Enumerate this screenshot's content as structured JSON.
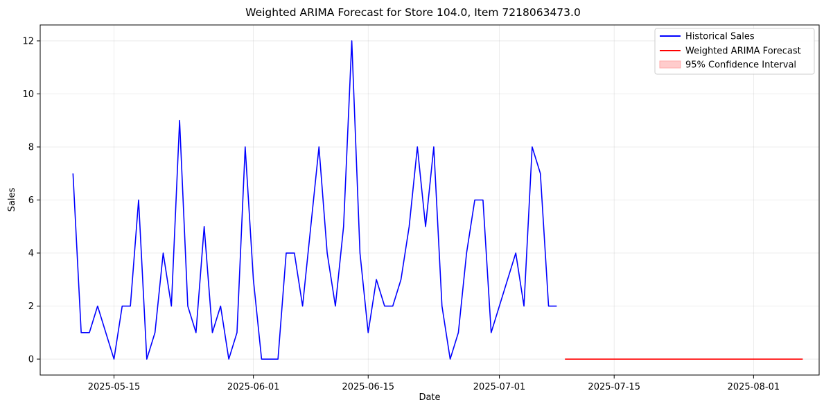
{
  "chart_data": {
    "type": "line",
    "title": "Weighted ARIMA Forecast for Store 104.0, Item 7218063473.0",
    "xlabel": "Date",
    "ylabel": "Sales",
    "x_axis_type": "date",
    "xlim": [
      "2025-05-06",
      "2025-08-09"
    ],
    "ylim": [
      -0.6,
      12.6
    ],
    "grid": true,
    "legend_position": "top-right",
    "x_ticks": [
      "2025-05-15",
      "2025-06-01",
      "2025-06-15",
      "2025-07-01",
      "2025-07-15",
      "2025-08-01"
    ],
    "y_ticks": [
      "0",
      "2",
      "4",
      "6",
      "8",
      "10",
      "12"
    ],
    "series": [
      {
        "name": "Historical Sales",
        "kind": "line",
        "color": "#0000ff",
        "x": [
          "2025-05-10",
          "2025-05-11",
          "2025-05-12",
          "2025-05-13",
          "2025-05-15",
          "2025-05-16",
          "2025-05-17",
          "2025-05-18",
          "2025-05-19",
          "2025-05-20",
          "2025-05-21",
          "2025-05-22",
          "2025-05-23",
          "2025-05-24",
          "2025-05-25",
          "2025-05-26",
          "2025-05-27",
          "2025-05-28",
          "2025-05-29",
          "2025-05-30",
          "2025-05-31",
          "2025-06-01",
          "2025-06-02",
          "2025-06-04",
          "2025-06-05",
          "2025-06-06",
          "2025-06-07",
          "2025-06-09",
          "2025-06-10",
          "2025-06-11",
          "2025-06-12",
          "2025-06-13",
          "2025-06-14",
          "2025-06-15",
          "2025-06-16",
          "2025-06-17",
          "2025-06-18",
          "2025-06-19",
          "2025-06-20",
          "2025-06-21",
          "2025-06-22",
          "2025-06-23",
          "2025-06-24",
          "2025-06-25",
          "2025-06-26",
          "2025-06-27",
          "2025-06-28",
          "2025-06-29",
          "2025-06-30",
          "2025-07-03",
          "2025-07-04",
          "2025-07-05",
          "2025-07-06",
          "2025-07-07",
          "2025-07-08"
        ],
        "values": [
          7,
          1,
          1,
          2,
          0,
          2,
          2,
          6,
          0,
          1,
          4,
          2,
          9,
          2,
          1,
          5,
          1,
          2,
          0,
          1,
          8,
          3,
          0,
          0,
          4,
          4,
          2,
          8,
          4,
          2,
          5,
          12,
          4,
          1,
          3,
          2,
          2,
          3,
          5,
          8,
          5,
          8,
          2,
          0,
          1,
          4,
          6,
          6,
          1,
          4,
          2,
          8,
          7,
          2,
          2
        ]
      },
      {
        "name": "Weighted ARIMA Forecast",
        "kind": "line",
        "color": "#ff0000",
        "x": [
          "2025-07-09",
          "2025-08-07"
        ],
        "values": [
          0,
          0
        ]
      },
      {
        "name": "95% Confidence Interval",
        "kind": "band",
        "color": "#ffcccc",
        "x": [
          "2025-07-09",
          "2025-08-07"
        ],
        "lower": [
          0,
          0
        ],
        "upper": [
          0,
          0
        ]
      }
    ]
  }
}
